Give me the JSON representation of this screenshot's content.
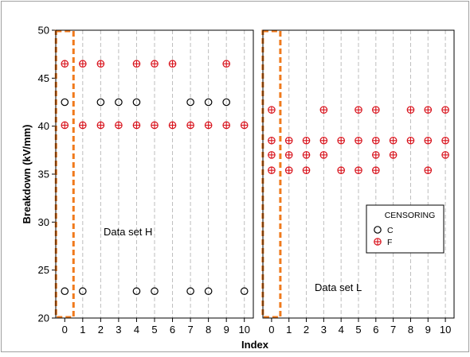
{
  "chart_data": {
    "type": "scatter",
    "ylabel": "Breakdown (kV/mm)",
    "xlabel": "Index",
    "ylim": [
      20,
      50
    ],
    "yticks": [
      20,
      25,
      30,
      35,
      40,
      45,
      50
    ],
    "xlim": [
      -0.5,
      10.5
    ],
    "xticks": [
      0,
      1,
      2,
      3,
      4,
      5,
      6,
      7,
      8,
      9,
      10
    ],
    "grid": "vertical dashed at each index",
    "panels": [
      {
        "label": "Data set H",
        "highlight_index": 0,
        "series": [
          {
            "name": "C",
            "points": [
              [
                0,
                42.5
              ],
              [
                0,
                22.8
              ],
              [
                1,
                22.8
              ],
              [
                2,
                42.5
              ],
              [
                3,
                42.5
              ],
              [
                4,
                42.5
              ],
              [
                4,
                22.8
              ],
              [
                5,
                22.8
              ],
              [
                7,
                42.5
              ],
              [
                7,
                22.8
              ],
              [
                8,
                42.5
              ],
              [
                8,
                22.8
              ],
              [
                9,
                42.5
              ],
              [
                10,
                22.8
              ]
            ]
          },
          {
            "name": "F",
            "points": [
              [
                0,
                46.5
              ],
              [
                0,
                40.1
              ],
              [
                1,
                46.5
              ],
              [
                1,
                40.1
              ],
              [
                2,
                46.5
              ],
              [
                2,
                40.1
              ],
              [
                3,
                40.1
              ],
              [
                4,
                46.5
              ],
              [
                4,
                40.1
              ],
              [
                5,
                46.5
              ],
              [
                5,
                40.1
              ],
              [
                6,
                46.5
              ],
              [
                6,
                40.1
              ],
              [
                7,
                40.1
              ],
              [
                8,
                40.1
              ],
              [
                9,
                46.5
              ],
              [
                9,
                40.1
              ],
              [
                10,
                40.1
              ]
            ]
          }
        ]
      },
      {
        "label": "Data set L",
        "highlight_index": 0,
        "series": [
          {
            "name": "C",
            "points": []
          },
          {
            "name": "F",
            "points": [
              [
                0,
                41.7
              ],
              [
                0,
                38.5
              ],
              [
                0,
                37.0
              ],
              [
                0,
                35.4
              ],
              [
                1,
                38.5
              ],
              [
                1,
                37.0
              ],
              [
                1,
                35.4
              ],
              [
                2,
                38.5
              ],
              [
                2,
                37.0
              ],
              [
                2,
                35.4
              ],
              [
                3,
                41.7
              ],
              [
                3,
                38.5
              ],
              [
                3,
                37.0
              ],
              [
                4,
                38.5
              ],
              [
                4,
                35.4
              ],
              [
                5,
                41.7
              ],
              [
                5,
                38.5
              ],
              [
                5,
                35.4
              ],
              [
                6,
                41.7
              ],
              [
                6,
                38.5
              ],
              [
                6,
                37.0
              ],
              [
                6,
                35.4
              ],
              [
                7,
                38.5
              ],
              [
                7,
                37.0
              ],
              [
                8,
                41.7
              ],
              [
                8,
                38.5
              ],
              [
                9,
                41.7
              ],
              [
                9,
                38.5
              ],
              [
                9,
                35.4
              ],
              [
                10,
                41.7
              ],
              [
                10,
                38.5
              ],
              [
                10,
                37.0
              ]
            ]
          }
        ]
      }
    ],
    "legend": {
      "title": "CENSORING",
      "placement": "inside right panel, lower-right",
      "entries": [
        {
          "name": "C",
          "marker": "open-circle"
        },
        {
          "name": "F",
          "marker": "circle-plus"
        }
      ]
    },
    "colors": {
      "C": "#000000",
      "F": "#d8101a",
      "highlight": "#f07a1c",
      "grid": "#bdbdbd",
      "panel_border": "#000000",
      "outer_border": "#a0a0a0"
    }
  }
}
